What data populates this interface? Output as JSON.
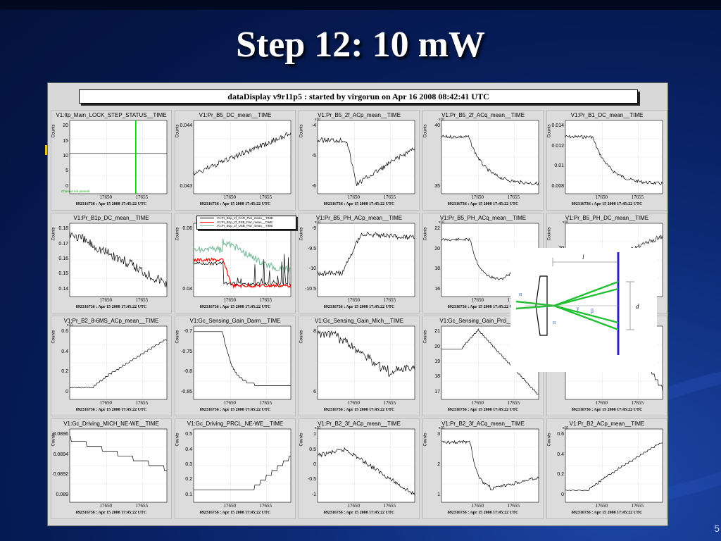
{
  "slide": {
    "title": "Step 12: 10 mW",
    "page_number": "5"
  },
  "datadisplay": {
    "header": "dataDisplay v9r11p5 : started by virgorun on Apr 16 2008 08:42:41 UTC",
    "footer": "892316736 : Apr 15 2008 17:45:22 UTC",
    "counts_label": "Counts",
    "x_ticks": [
      "17650",
      "17655"
    ]
  },
  "panels": [
    {
      "title": "V1:Itp_Main_LOCK_STEP_STATUS__TIME",
      "ylabels": [
        "20",
        "15",
        "10",
        "5",
        "0"
      ],
      "exp": "",
      "note": "Channel not present",
      "style": "status"
    },
    {
      "title": "V1:Pr_B5_DC_mean__TIME",
      "ylabels": [
        "0.044",
        "0.043"
      ],
      "exp": "",
      "style": "rise"
    },
    {
      "title": "V1:Pr_B5_2f_ACp_mean__TIME",
      "ylabels": [
        "-4",
        "-5",
        "-6"
      ],
      "exp": "x10",
      "style": "dip"
    },
    {
      "title": "V1:Pr_B5_2f_ACq_mean__TIME",
      "ylabels": [
        "40",
        "35"
      ],
      "exp": "x10",
      "style": "drop_decay"
    },
    {
      "title": "V1:Pr_B1_DC_mean__TIME",
      "ylabels": [
        "0.014",
        "0.012",
        "0.01",
        "0.008"
      ],
      "exp": "",
      "style": "drop_decay"
    },
    {
      "title": "V1:Pr_B1p_DC_mean__TIME",
      "ylabels": [
        "0.18",
        "0.17",
        "0.16",
        "0.15",
        "0.14"
      ],
      "exp": "",
      "style": "fall"
    },
    {
      "title": "",
      "ylabels": [
        "0.06",
        "0.04"
      ],
      "exp": "",
      "style": "multi",
      "legend": [
        "V1:Pr_B1p_2f_CAR_Pwr_mean__TIME",
        "V1:Pr_B1p_2f_SSB_Pwr_mean__TIME",
        "V1:Pr_B1p_2f_USB_Pwr_mean__TIME"
      ]
    },
    {
      "title": "V1:Pr_B5_PH_ACp_mean__TIME",
      "ylabels": [
        "-9",
        "-9.5",
        "-10",
        "-10.5"
      ],
      "exp": "x10",
      "style": "step_up"
    },
    {
      "title": "V1:Pr_B5_PH_ACq_mean__TIME",
      "ylabels": [
        "22",
        "20",
        "18",
        "16"
      ],
      "exp": "x10",
      "style": "drop_partial"
    },
    {
      "title": "V1:Pr_B5_PH_DC_mean__TIME",
      "ylabels": [
        "20"
      ],
      "exp": "x10",
      "style": "hidden"
    },
    {
      "title": "V1:Pr_B2_8-6MS_ACp_mean__TIME",
      "ylabels": [
        "0.6",
        "0.4",
        "0.2",
        "0"
      ],
      "exp": "x10",
      "style": "stair_up"
    },
    {
      "title": "V1:Gc_Sensing_Gain_Darm__TIME",
      "ylabels": [
        "-0.7",
        "-0.75",
        "-0.8",
        "-0.85"
      ],
      "exp": "",
      "style": "stair_down"
    },
    {
      "title": "V1:Gc_Sensing_Gain_Mich__TIME",
      "ylabels": [
        "8",
        "6"
      ],
      "exp": "",
      "style": "mich"
    },
    {
      "title": "V1:Gc_Sensing_Gain_Prcl__TIME",
      "ylabels": [
        "21",
        "20",
        "19",
        "18",
        "17"
      ],
      "exp": "",
      "style": "peak"
    },
    {
      "title": "",
      "ylabels": [
        "-0.005"
      ],
      "exp": "",
      "style": "tail_down"
    },
    {
      "title": "V1:Gc_Driving_MICH_NE-WE__TIME",
      "ylabels": [
        "0.0896",
        "0.0894",
        "0.0892",
        "0.089"
      ],
      "exp": "",
      "style": "stair_down2"
    },
    {
      "title": "V1:Gc_Driving_PRCL_NE-WE__TIME",
      "ylabels": [
        "0.5",
        "0.4",
        "0.3",
        "0.2",
        "0.1"
      ],
      "exp": "",
      "style": "flat_up"
    },
    {
      "title": "V1:Pr_B2_3f_ACp_mean__TIME",
      "ylabels": [
        "1",
        "0.5",
        "0",
        "-0.5",
        "-1"
      ],
      "exp": "x10",
      "style": "hump_fall"
    },
    {
      "title": "V1:Pr_B2_3f_ACq_mean__TIME",
      "ylabels": [
        "3",
        "2",
        "1"
      ],
      "exp": "x10",
      "style": "drop_recover"
    },
    {
      "title": "V1:Pr_B2_ACp_mean__TIME",
      "ylabels": [
        "0.6",
        "0.4",
        "0.2",
        "0"
      ],
      "exp": "x10",
      "style": "stair_up"
    }
  ],
  "diagram": {
    "labels": {
      "l": "l",
      "d": "d",
      "alpha": "α",
      "beta": "β",
      "gamma": "γ"
    },
    "colors": {
      "beam": "#22c033",
      "mirror": "#3020c0",
      "lens": "#000000",
      "label": "#3366cc"
    }
  },
  "colors": {
    "trace": "#000000",
    "status_marker": "#00cc00",
    "legend_series": [
      "#000000",
      "#ff0000",
      "#80c0a0"
    ]
  }
}
